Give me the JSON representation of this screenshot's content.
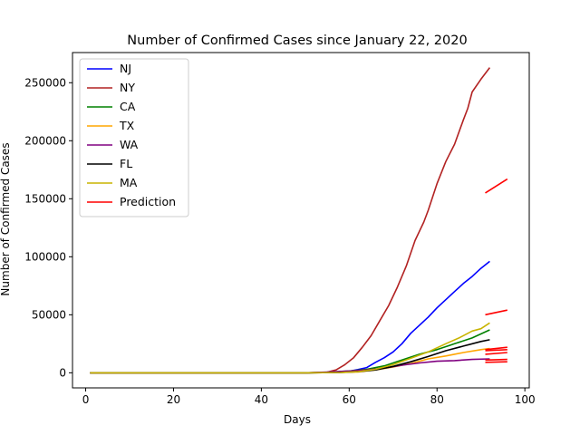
{
  "chart_data": {
    "type": "line",
    "title": "Number of Confirmed Cases since January 22, 2020",
    "xlabel": "Days",
    "ylabel": "Number of Confirmed Cases",
    "xlim": [
      -3,
      101
    ],
    "ylim": [
      -13000,
      276000
    ],
    "xticks": [
      0,
      20,
      40,
      60,
      80,
      100
    ],
    "yticks": [
      0,
      50000,
      100000,
      150000,
      200000,
      250000
    ],
    "grid": false,
    "legend_position": "top-left",
    "series": [
      {
        "name": "NJ",
        "color": "#0000ff",
        "points": [
          [
            1,
            0
          ],
          [
            50,
            0
          ],
          [
            56,
            300
          ],
          [
            60,
            1300
          ],
          [
            62,
            2800
          ],
          [
            64,
            4500
          ],
          [
            66,
            9000
          ],
          [
            68,
            13000
          ],
          [
            70,
            18000
          ],
          [
            72,
            25000
          ],
          [
            74,
            34000
          ],
          [
            76,
            41000
          ],
          [
            78,
            48000
          ],
          [
            80,
            56000
          ],
          [
            82,
            63000
          ],
          [
            84,
            70000
          ],
          [
            86,
            77000
          ],
          [
            88,
            83000
          ],
          [
            90,
            90000
          ],
          [
            92,
            96000
          ]
        ]
      },
      {
        "name": "NY",
        "color": "#b22222",
        "points": [
          [
            1,
            0
          ],
          [
            50,
            0
          ],
          [
            55,
            500
          ],
          [
            57,
            2500
          ],
          [
            59,
            7000
          ],
          [
            61,
            13000
          ],
          [
            63,
            22000
          ],
          [
            65,
            32000
          ],
          [
            67,
            45000
          ],
          [
            69,
            58000
          ],
          [
            71,
            74000
          ],
          [
            73,
            92000
          ],
          [
            75,
            114000
          ],
          [
            77,
            130000
          ],
          [
            78,
            140000
          ],
          [
            80,
            163000
          ],
          [
            82,
            182000
          ],
          [
            84,
            197000
          ],
          [
            86,
            218000
          ],
          [
            87,
            228000
          ],
          [
            88,
            242000
          ],
          [
            90,
            253000
          ],
          [
            92,
            263000
          ]
        ]
      },
      {
        "name": "CA",
        "color": "#008000",
        "points": [
          [
            1,
            0
          ],
          [
            50,
            0
          ],
          [
            55,
            400
          ],
          [
            60,
            1500
          ],
          [
            64,
            3000
          ],
          [
            68,
            6000
          ],
          [
            72,
            11000
          ],
          [
            76,
            16000
          ],
          [
            80,
            20000
          ],
          [
            84,
            25000
          ],
          [
            88,
            30000
          ],
          [
            92,
            37000
          ]
        ]
      },
      {
        "name": "TX",
        "color": "#ffa500",
        "points": [
          [
            1,
            0
          ],
          [
            50,
            0
          ],
          [
            58,
            300
          ],
          [
            62,
            700
          ],
          [
            66,
            2500
          ],
          [
            70,
            5000
          ],
          [
            74,
            8000
          ],
          [
            78,
            12000
          ],
          [
            82,
            14500
          ],
          [
            86,
            17500
          ],
          [
            90,
            20000
          ],
          [
            92,
            21000
          ]
        ]
      },
      {
        "name": "WA",
        "color": "#800080",
        "points": [
          [
            1,
            0
          ],
          [
            50,
            0
          ],
          [
            55,
            600
          ],
          [
            60,
            1500
          ],
          [
            64,
            2500
          ],
          [
            68,
            4000
          ],
          [
            72,
            6500
          ],
          [
            76,
            8500
          ],
          [
            80,
            10000
          ],
          [
            84,
            10500
          ],
          [
            88,
            11500
          ],
          [
            92,
            12000
          ]
        ]
      },
      {
        "name": "FL",
        "color": "#000000",
        "points": [
          [
            1,
            0
          ],
          [
            50,
            0
          ],
          [
            58,
            300
          ],
          [
            62,
            1000
          ],
          [
            66,
            2500
          ],
          [
            70,
            5500
          ],
          [
            74,
            9500
          ],
          [
            78,
            14000
          ],
          [
            82,
            19000
          ],
          [
            86,
            23000
          ],
          [
            90,
            27000
          ],
          [
            92,
            28500
          ]
        ]
      },
      {
        "name": "MA",
        "color": "#c8b400",
        "points": [
          [
            1,
            0
          ],
          [
            50,
            0
          ],
          [
            58,
            300
          ],
          [
            62,
            1000
          ],
          [
            66,
            3000
          ],
          [
            70,
            7000
          ],
          [
            74,
            12500
          ],
          [
            78,
            18000
          ],
          [
            82,
            25000
          ],
          [
            85,
            30000
          ],
          [
            88,
            36000
          ],
          [
            90,
            38000
          ],
          [
            92,
            43000
          ]
        ]
      },
      {
        "name": "Prediction",
        "color": "#ff0000",
        "segments": [
          [
            [
              91,
              155000
            ],
            [
              96,
              167000
            ]
          ],
          [
            [
              91,
              50000
            ],
            [
              96,
              54000
            ]
          ],
          [
            [
              91,
              20000
            ],
            [
              96,
              22000
            ]
          ],
          [
            [
              91,
              19000
            ],
            [
              96,
              20000
            ]
          ],
          [
            [
              91,
              16000
            ],
            [
              96,
              17500
            ]
          ],
          [
            [
              91,
              11000
            ],
            [
              96,
              11500
            ]
          ],
          [
            [
              91,
              9000
            ],
            [
              96,
              9500
            ]
          ]
        ]
      }
    ]
  }
}
